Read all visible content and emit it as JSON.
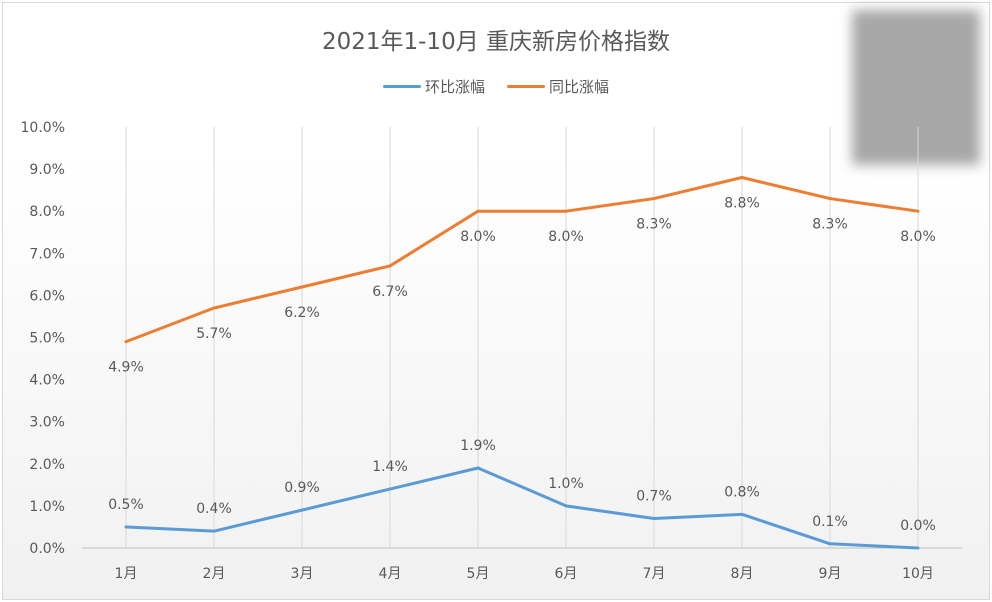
{
  "chart_data": {
    "type": "line",
    "title": "2021年1-10月  重庆新房价格指数",
    "categories": [
      "1月",
      "2月",
      "3月",
      "4月",
      "5月",
      "6月",
      "7月",
      "8月",
      "9月",
      "10月"
    ],
    "series": [
      {
        "name": "环比涨幅",
        "color": "#5b9bd5",
        "values": [
          0.5,
          0.4,
          0.9,
          1.4,
          1.9,
          1.0,
          0.7,
          0.8,
          0.1,
          0.0
        ]
      },
      {
        "name": "同比涨幅",
        "color": "#ed7d31",
        "values": [
          4.9,
          5.7,
          6.2,
          6.7,
          8.0,
          8.0,
          8.3,
          8.8,
          8.3,
          8.0
        ]
      }
    ],
    "ylim": [
      0,
      10
    ],
    "yticks": [
      "0.0%",
      "1.0%",
      "2.0%",
      "3.0%",
      "4.0%",
      "5.0%",
      "6.0%",
      "7.0%",
      "8.0%",
      "9.0%",
      "10.0%"
    ],
    "xlabel": "",
    "ylabel": "",
    "legend": "top",
    "grid": "vertical",
    "data_labels": true
  }
}
